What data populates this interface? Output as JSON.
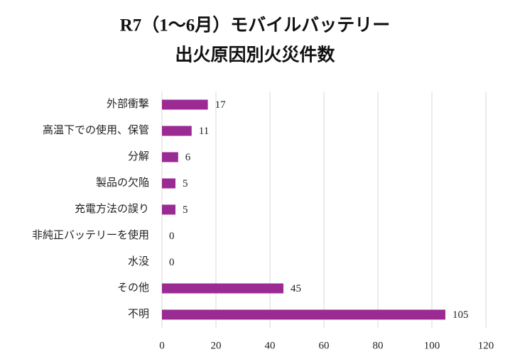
{
  "chart_data": {
    "type": "hbar",
    "title_lines": [
      "R7（1〜6月）モバイルバッテリー",
      "出火原因別火災件数"
    ],
    "categories": [
      "外部衝撃",
      "高温下での使用、保管",
      "分解",
      "製品の欠陥",
      "充電方法の誤り",
      "非純正バッテリーを使用",
      "水没",
      "その他",
      "不明"
    ],
    "values": [
      17,
      11,
      6,
      5,
      5,
      0,
      0,
      45,
      105
    ],
    "color": "#9b2b93",
    "xlim": [
      0,
      120
    ],
    "xticks": [
      0,
      20,
      40,
      60,
      80,
      100,
      120
    ],
    "grid": true
  }
}
